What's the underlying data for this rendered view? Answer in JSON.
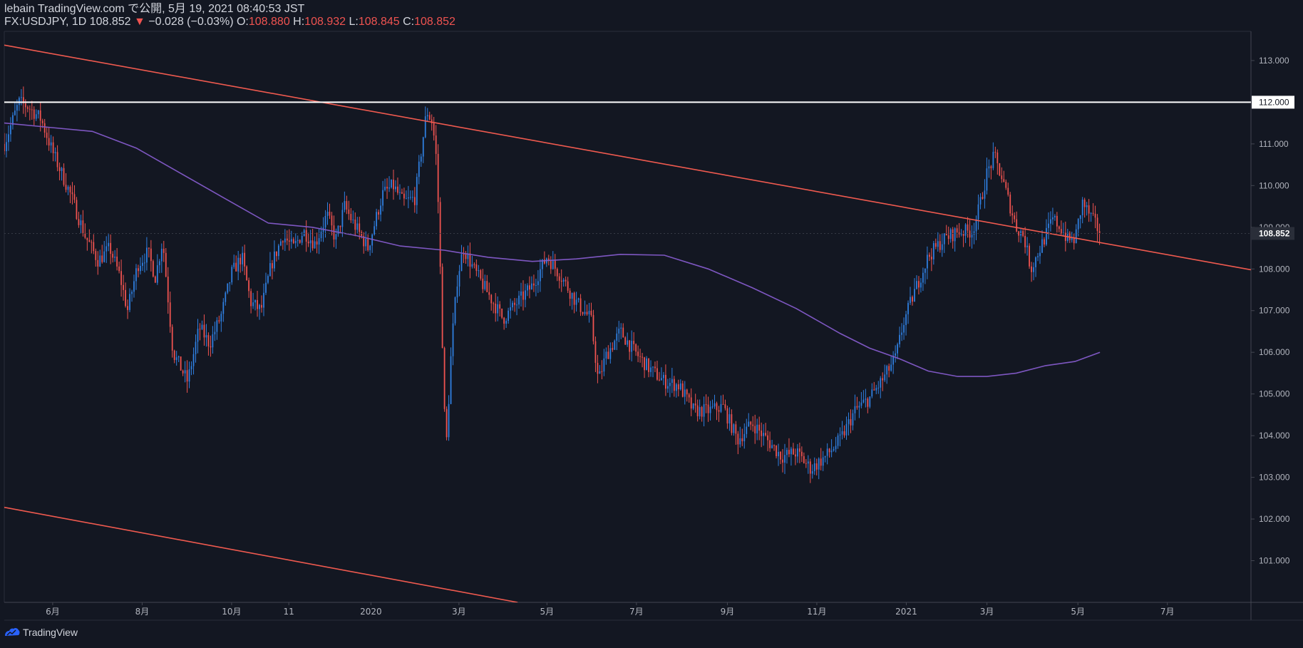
{
  "header": {
    "line1": "lebain TradingView.com で公開, 5月 19, 2021 08:40:53 JST",
    "symbol": "FX:USDJPY, 1D 108.852",
    "down_arrow": "▼",
    "change": "−0.028 (−0.03%)",
    "o_label": "O:",
    "o_value": "108.880",
    "h_label": "H:",
    "h_value": "108.932",
    "l_label": "L:",
    "l_value": "108.845",
    "c_label": "C:",
    "c_value": "108.852"
  },
  "footer": {
    "brand": "TradingView"
  },
  "colors": {
    "background": "#131722",
    "up": "#2f7fe0",
    "down": "#ef5350",
    "ma": "#7e57c2",
    "channel": "#f05a4f",
    "resistance": "#ffffff",
    "axis_text": "#b2b5be"
  },
  "chart_data": {
    "type": "candlestick",
    "title": "FX:USDJPY, 1D",
    "ylim": [
      100,
      113.7
    ],
    "y_ticks": [
      101,
      102,
      103,
      104,
      105,
      106,
      107,
      108,
      109,
      110,
      111,
      112,
      113
    ],
    "y_tick_labels": [
      "101.000",
      "102.000",
      "103.000",
      "104.000",
      "105.000",
      "106.000",
      "107.000",
      "108.000",
      "109.000",
      "110.000",
      "111.000",
      "112.000",
      "113.000"
    ],
    "x_labels": [
      "6月",
      "8月",
      "10月",
      "11",
      "2020",
      "3月",
      "5月",
      "7月",
      "9月",
      "11月",
      "2021",
      "3月",
      "5月",
      "7月"
    ],
    "x_label_days": [
      33,
      94,
      155,
      194,
      250,
      310,
      370,
      431,
      493,
      554,
      615,
      670,
      732,
      793
    ],
    "x_range_days": [
      0,
      850
    ],
    "last_price": 108.852,
    "last_price_label": "108.852",
    "resistance_level": 112.0,
    "resistance_label": "112.000",
    "price_path_days": [
      0,
      10,
      16,
      25,
      33,
      45,
      55,
      64,
      72,
      79,
      84,
      91,
      98,
      103,
      108,
      115,
      125,
      133,
      140,
      148,
      155,
      162,
      168,
      175,
      182,
      190,
      197,
      204,
      212,
      220,
      226,
      232,
      238,
      248,
      258,
      265,
      272,
      280,
      288,
      292,
      295,
      297,
      301,
      305,
      309,
      313,
      320,
      330,
      340,
      350,
      360,
      370,
      380,
      390,
      400,
      405,
      410,
      420,
      430,
      440,
      450,
      460,
      470,
      480,
      490,
      500,
      510,
      520,
      530,
      540,
      550,
      560,
      570,
      580,
      590,
      600,
      608,
      613,
      620,
      630,
      640,
      650,
      660,
      665,
      670,
      675,
      680,
      685,
      690,
      695,
      700,
      705,
      710,
      715,
      720,
      725,
      730,
      735,
      740,
      745,
      747
    ],
    "price_path_values": [
      111.0,
      112.0,
      111.9,
      111.6,
      110.8,
      109.8,
      108.8,
      108.2,
      108.5,
      107.8,
      107.0,
      108.1,
      108.4,
      107.8,
      108.7,
      106.0,
      105.3,
      106.6,
      106.2,
      106.9,
      107.9,
      108.3,
      107.2,
      107.0,
      108.1,
      108.8,
      108.5,
      108.9,
      108.6,
      109.3,
      108.7,
      109.5,
      109.1,
      108.5,
      109.8,
      110.0,
      109.6,
      109.7,
      111.8,
      111.5,
      110.5,
      108.3,
      103.5,
      106.2,
      107.8,
      108.5,
      108.0,
      107.4,
      106.8,
      107.2,
      107.6,
      108.3,
      107.8,
      107.2,
      106.8,
      105.3,
      105.9,
      106.5,
      106.0,
      105.6,
      105.3,
      105.2,
      104.6,
      104.6,
      104.7,
      103.9,
      104.3,
      103.9,
      103.5,
      103.6,
      103.2,
      103.5,
      103.9,
      104.6,
      104.9,
      105.4,
      105.9,
      106.7,
      107.4,
      108.3,
      108.7,
      108.9,
      108.9,
      109.5,
      110.3,
      110.7,
      110.2,
      109.6,
      109.0,
      108.8,
      108.0,
      108.4,
      108.8,
      109.2,
      109.0,
      108.7,
      108.7,
      109.6,
      109.3,
      109.0,
      108.85
    ],
    "ma_days": [
      0,
      30,
      60,
      90,
      120,
      150,
      180,
      210,
      240,
      270,
      300,
      330,
      360,
      390,
      420,
      450,
      480,
      510,
      540,
      570,
      590,
      610,
      630,
      650,
      670,
      690,
      710,
      730,
      747
    ],
    "ma_values": [
      111.5,
      111.4,
      111.3,
      110.9,
      110.3,
      109.7,
      109.1,
      109.0,
      108.8,
      108.55,
      108.45,
      108.28,
      108.18,
      108.24,
      108.35,
      108.33,
      108.0,
      107.55,
      107.05,
      106.45,
      106.1,
      105.85,
      105.55,
      105.42,
      105.42,
      105.5,
      105.68,
      105.78,
      106.0
    ],
    "channel_upper": {
      "start_day": 0,
      "start_value": 113.37,
      "end_day": 850,
      "end_value": 107.98
    },
    "channel_lower": {
      "start_day": 0,
      "start_value": 102.28,
      "end_day": 350,
      "end_value": 100.0
    }
  }
}
